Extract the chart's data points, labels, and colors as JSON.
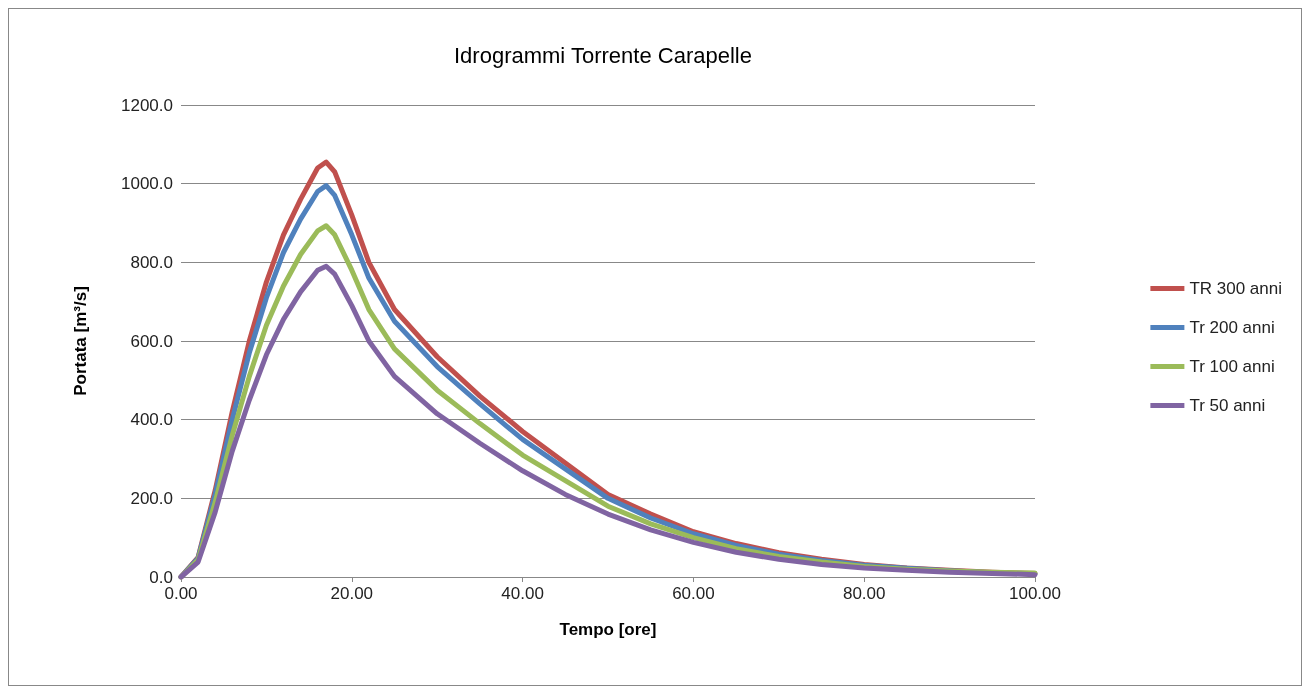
{
  "chart_data": {
    "type": "line",
    "title": "Idrogrammi Torrente Carapelle",
    "xlabel": "Tempo [ore]",
    "ylabel": "Portata [m³/s]",
    "x": [
      0,
      2,
      4,
      6,
      8,
      10,
      12,
      14,
      16,
      17,
      18,
      20,
      22,
      25,
      30,
      35,
      40,
      45,
      50,
      55,
      60,
      65,
      70,
      75,
      80,
      85,
      90,
      95,
      100
    ],
    "series": [
      {
        "name": "TR 300 anni",
        "color": "#c0504d",
        "values": [
          0,
          50,
          220,
          420,
          600,
          750,
          870,
          960,
          1040,
          1055,
          1030,
          920,
          800,
          680,
          560,
          460,
          370,
          290,
          210,
          160,
          115,
          85,
          62,
          45,
          32,
          23,
          17,
          12,
          9
        ]
      },
      {
        "name": "Tr 200 anni",
        "color": "#4f81bd",
        "values": [
          0,
          48,
          210,
          400,
          570,
          710,
          825,
          910,
          980,
          995,
          970,
          870,
          760,
          650,
          535,
          440,
          350,
          275,
          200,
          150,
          110,
          80,
          58,
          42,
          30,
          22,
          16,
          11,
          8
        ]
      },
      {
        "name": "Tr 100 anni",
        "color": "#9bbb59",
        "values": [
          0,
          44,
          190,
          360,
          510,
          640,
          740,
          820,
          880,
          893,
          870,
          780,
          680,
          580,
          475,
          390,
          310,
          245,
          180,
          135,
          100,
          72,
          52,
          38,
          27,
          20,
          15,
          12,
          10
        ]
      },
      {
        "name": "Tr 50 anni",
        "color": "#8064a2",
        "values": [
          0,
          38,
          165,
          320,
          450,
          565,
          655,
          725,
          780,
          790,
          770,
          690,
          600,
          510,
          415,
          340,
          270,
          210,
          160,
          120,
          88,
          63,
          45,
          32,
          23,
          17,
          12,
          9,
          6
        ]
      }
    ],
    "xlim": [
      0,
      100
    ],
    "xticks": [
      {
        "value": 0,
        "label": "0.00"
      },
      {
        "value": 20,
        "label": "20.00"
      },
      {
        "value": 40,
        "label": "40.00"
      },
      {
        "value": 60,
        "label": "60.00"
      },
      {
        "value": 80,
        "label": "80.00"
      },
      {
        "value": 100,
        "label": "100.00"
      }
    ],
    "ylim": [
      0,
      1200
    ],
    "yticks": [
      {
        "value": 0,
        "label": "0.0"
      },
      {
        "value": 200,
        "label": "200.0"
      },
      {
        "value": 400,
        "label": "400.0"
      },
      {
        "value": 600,
        "label": "600.0"
      },
      {
        "value": 800,
        "label": "800.0"
      },
      {
        "value": 1000,
        "label": "1000.0"
      },
      {
        "value": 1200,
        "label": "1200.0"
      }
    ],
    "grid": "y",
    "legend": "right",
    "marker": "none",
    "line_style": "solid"
  }
}
